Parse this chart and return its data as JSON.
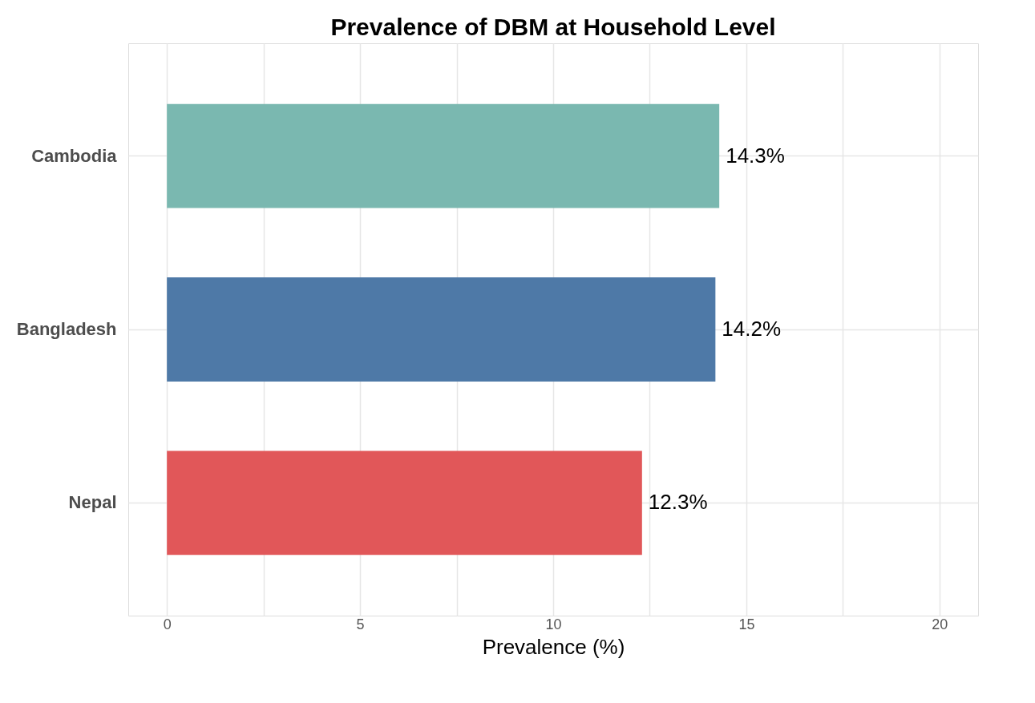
{
  "chart_data": {
    "type": "bar",
    "orientation": "horizontal",
    "title": "Prevalence of DBM at Household Level",
    "xlabel": "Prevalence (%)",
    "categories": [
      "Cambodia",
      "Bangladesh",
      "Nepal"
    ],
    "values": [
      14.3,
      14.2,
      12.3
    ],
    "colors": [
      "#7ab8b0",
      "#4e79a7",
      "#e15759"
    ],
    "value_labels": [
      "14.3%",
      "14.2%",
      "12.3%"
    ],
    "xlim": [
      -1,
      21
    ],
    "xticks": [
      0,
      {
        "value": 2.5,
        "label": null
      },
      5,
      {
        "value": 7.5,
        "label": null
      },
      10,
      {
        "value": 12.5,
        "label": null
      },
      15,
      {
        "value": 17.5,
        "label": null
      },
      20
    ],
    "grid": true,
    "legend": false
  }
}
